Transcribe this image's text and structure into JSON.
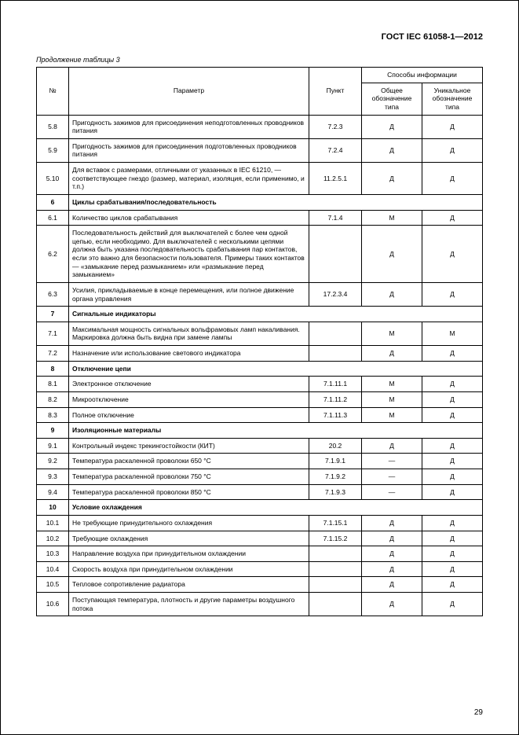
{
  "doc_header": "ГОСТ IEC 61058-1—2012",
  "table_continuation": "Продолжение таблицы 3",
  "headers": {
    "num": "№",
    "param": "Параметр",
    "clause": "Пункт",
    "info_group": "Способы информации",
    "info_general": "Общее обозначение типа",
    "info_unique": "Уникальное обозначение типа"
  },
  "rows": [
    {
      "type": "data",
      "num": "5.8",
      "param": "Пригодность зажимов для присоединения неподготовленных проводников питания",
      "clause": "7.2.3",
      "g": "Д",
      "u": "Д"
    },
    {
      "type": "data",
      "num": "5.9",
      "param": "Пригодность зажимов для присоединения подготовленных проводников питания",
      "clause": "7.2.4",
      "g": "Д",
      "u": "Д"
    },
    {
      "type": "data",
      "num": "5.10",
      "param": "Для вставок с размерами, отличными от указанных в IEC 61210, — соответствующее гнездо (размер, материал, изоляция, если применимо, и т.п.)",
      "clause": "11.2.5.1",
      "g": "Д",
      "u": "Д"
    },
    {
      "type": "section",
      "num": "6",
      "param": "Циклы срабатывания/последовательность"
    },
    {
      "type": "data",
      "num": "6.1",
      "param": "Количество циклов срабатывания",
      "clause": "7.1.4",
      "g": "М",
      "u": "Д"
    },
    {
      "type": "data",
      "num": "6.2",
      "param": "Последовательность действий для выключателей с более чем одной цепью, если необходимо. Для выключателей с несколькими цепями должна быть указана последовательность срабатывания пар контактов, если это важно для безопасности пользователя. Примеры таких контактов — «замыкание перед размыканием» или «размыкание перед замыканием»",
      "clause": "",
      "g": "Д",
      "u": "Д"
    },
    {
      "type": "data",
      "num": "6.3",
      "param": "Усилия, прикладываемые в конце перемещения, или полное движение органа управления",
      "clause": "17.2.3.4",
      "g": "Д",
      "u": "Д"
    },
    {
      "type": "section",
      "num": "7",
      "param": "Сигнальные индикаторы"
    },
    {
      "type": "data",
      "num": "7.1",
      "param": "Максимальная мощность сигнальных вольфрамовых ламп накаливания. Маркировка должна быть видна при замене лампы",
      "clause": "",
      "g": "М",
      "u": "М"
    },
    {
      "type": "data",
      "num": "7.2",
      "param": "Назначение или использование светового индикатора",
      "clause": "",
      "g": "Д",
      "u": "Д"
    },
    {
      "type": "section",
      "num": "8",
      "param": "Отключение цепи"
    },
    {
      "type": "data",
      "num": "8.1",
      "param": "Электронное отключение",
      "clause": "7.1.11.1",
      "g": "М",
      "u": "Д"
    },
    {
      "type": "data",
      "num": "8.2",
      "param": "Микроотключение",
      "clause": "7.1.11.2",
      "g": "М",
      "u": "Д"
    },
    {
      "type": "data",
      "num": "8.3",
      "param": "Полное отключение",
      "clause": "7.1.11.3",
      "g": "М",
      "u": "Д"
    },
    {
      "type": "section",
      "num": "9",
      "param": "Изоляционные материалы"
    },
    {
      "type": "data",
      "num": "9.1",
      "param": "Контрольный индекс трекингостойкости (КИТ)",
      "clause": "20.2",
      "g": "Д",
      "u": "Д"
    },
    {
      "type": "data",
      "num": "9.2",
      "param": "Температура раскаленной проволоки 650 °С",
      "clause": "7.1.9.1",
      "g": "—",
      "u": "Д"
    },
    {
      "type": "data",
      "num": "9.3",
      "param": "Температура раскаленной проволоки 750 °С",
      "clause": "7.1.9.2",
      "g": "—",
      "u": "Д"
    },
    {
      "type": "data",
      "num": "9.4",
      "param": "Температура раскаленной проволоки 850 °С",
      "clause": "7.1.9.3",
      "g": "—",
      "u": "Д"
    },
    {
      "type": "section",
      "num": "10",
      "param": "Условие охлаждения"
    },
    {
      "type": "data",
      "num": "10.1",
      "param": "Не требующие принудительного охлаждения",
      "clause": "7.1.15.1",
      "g": "Д",
      "u": "Д"
    },
    {
      "type": "data",
      "num": "10.2",
      "param": "Требующие охлаждения",
      "clause": "7.1.15.2",
      "g": "Д",
      "u": "Д"
    },
    {
      "type": "data",
      "num": "10.3",
      "param": "Направление воздуха при принудительном охлаждении",
      "clause": "",
      "g": "Д",
      "u": "Д"
    },
    {
      "type": "data",
      "num": "10.4",
      "param": "Скорость воздуха при принудительном охлаждении",
      "clause": "",
      "g": "Д",
      "u": "Д"
    },
    {
      "type": "data",
      "num": "10.5",
      "param": "Тепловое сопротивление радиатора",
      "clause": "",
      "g": "Д",
      "u": "Д"
    },
    {
      "type": "data",
      "num": "10.6",
      "param": "Поступающая температура, плотность и другие параметры воздушного потока",
      "clause": "",
      "g": "Д",
      "u": "Д"
    }
  ],
  "page_number": "29"
}
